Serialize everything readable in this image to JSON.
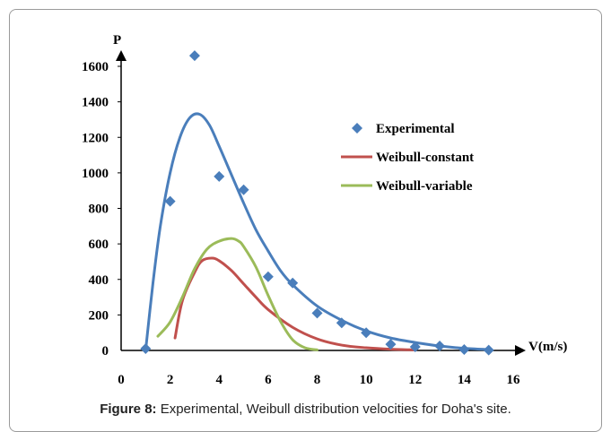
{
  "chart_data": {
    "type": "line",
    "xlabel": "V(m/s)",
    "ylabel": "P",
    "xlim": [
      0,
      16
    ],
    "ylim": [
      0,
      1600
    ],
    "x_ticks": [
      0,
      2,
      4,
      6,
      8,
      10,
      12,
      14,
      16
    ],
    "y_ticks": [
      0,
      200,
      400,
      600,
      800,
      1000,
      1200,
      1400,
      1600
    ],
    "grid": false,
    "legend_position": "top-right",
    "series": [
      {
        "name": "Experimental",
        "kind": "scatter",
        "marker": "diamond",
        "color": "#4a7ebb",
        "x": [
          1,
          2,
          3,
          4,
          5,
          6,
          7,
          8,
          9,
          10,
          11,
          12,
          13,
          14,
          15
        ],
        "y": [
          10,
          840,
          1660,
          980,
          905,
          415,
          380,
          210,
          155,
          100,
          35,
          20,
          25,
          5,
          2
        ]
      },
      {
        "name": "Weibull-constant",
        "kind": "line",
        "color": "#c0504d",
        "x": [
          2.2,
          2.5,
          3.0,
          3.3,
          3.7,
          4.0,
          4.5,
          5.0,
          5.5,
          6.0,
          7.0,
          8.0,
          9.0,
          10.0,
          11.0,
          12.0
        ],
        "y": [
          70,
          280,
          440,
          505,
          520,
          505,
          450,
          375,
          300,
          230,
          130,
          65,
          30,
          15,
          7,
          3
        ]
      },
      {
        "name": "Weibull-variable",
        "kind": "line",
        "color": "#9bbb59",
        "x": [
          1.5,
          2.0,
          2.5,
          3.0,
          3.5,
          4.0,
          4.5,
          4.8,
          5.0,
          5.5,
          6.0,
          6.5,
          7.0,
          7.5,
          8.0
        ],
        "y": [
          80,
          160,
          300,
          460,
          570,
          615,
          630,
          615,
          585,
          470,
          310,
          165,
          60,
          15,
          3
        ]
      },
      {
        "name": "",
        "kind": "line",
        "color": "#4a7ebb",
        "x": [
          1.0,
          1.3,
          1.6,
          2.0,
          2.4,
          2.8,
          3.2,
          3.6,
          4.0,
          4.5,
          5.0,
          5.5,
          6.0,
          6.5,
          7.0,
          8.0,
          9.0,
          10.0,
          11.0,
          12.0,
          13.0,
          14.0,
          15.0
        ],
        "y": [
          0,
          380,
          700,
          1000,
          1200,
          1310,
          1330,
          1270,
          1150,
          990,
          830,
          680,
          560,
          450,
          370,
          250,
          170,
          110,
          70,
          45,
          25,
          12,
          5
        ]
      }
    ]
  },
  "caption": {
    "figure_label": "Figure 8:",
    "text": " Experimental, Weibull distribution velocities for Doha's site."
  }
}
